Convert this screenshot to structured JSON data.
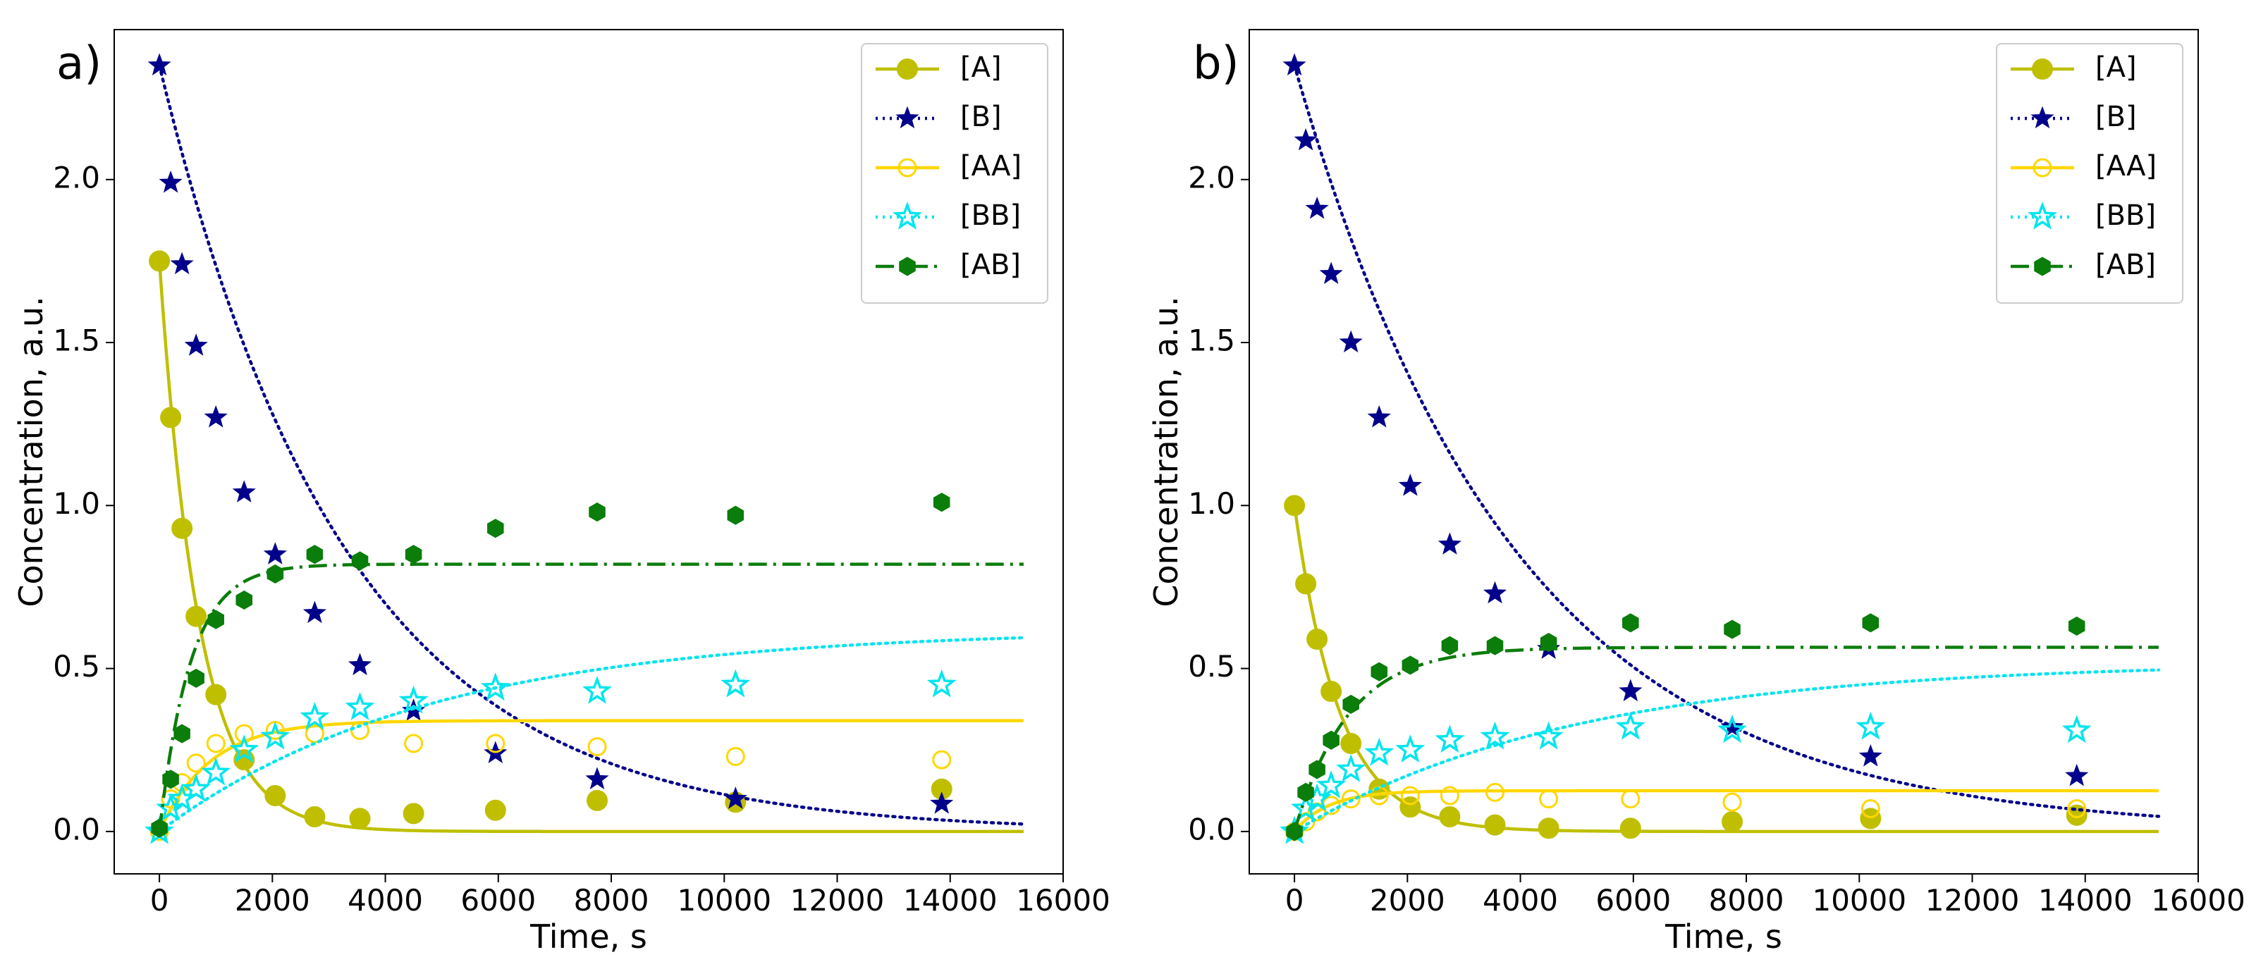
{
  "chart_data": [
    {
      "type": "scatter",
      "panel_label": "a)",
      "xlabel": "Time, s",
      "ylabel": "Concentration, a.u.",
      "xlim": [
        -800,
        16000
      ],
      "ylim": [
        -0.13,
        2.46
      ],
      "xticks": [
        0,
        2000,
        4000,
        6000,
        8000,
        10000,
        12000,
        14000,
        16000
      ],
      "xtick_labels": [
        "0",
        "2000",
        "4000",
        "6000",
        "8000",
        "10000",
        "12000",
        "14000",
        "16000"
      ],
      "yticks": [
        0.0,
        0.5,
        1.0,
        1.5,
        2.0
      ],
      "ytick_labels": [
        "0.0",
        "0.5",
        "1.0",
        "1.5",
        "2.0"
      ],
      "legend": "top-right",
      "grid": false,
      "series": [
        {
          "name": "[A]",
          "color": "#bfbf00",
          "line": "solid",
          "marker": "filled-circle",
          "x": [
            0,
            200,
            400,
            650,
            1000,
            1500,
            2050,
            2750,
            3550,
            4500,
            5950,
            7750,
            10200,
            13850
          ],
          "y": [
            1.75,
            1.27,
            0.93,
            0.66,
            0.42,
            0.22,
            0.11,
            0.045,
            0.04,
            0.055,
            0.065,
            0.095,
            0.09,
            0.13
          ],
          "fit": {
            "model": "exp_decay",
            "c0": 1.75,
            "c_inf": 0.0,
            "tau": 700
          }
        },
        {
          "name": "[B]",
          "color": "#00008b",
          "line": "dotted",
          "marker": "filled-star",
          "x": [
            0,
            200,
            400,
            650,
            1000,
            1500,
            2050,
            2750,
            3550,
            4500,
            5950,
            7750,
            10200,
            13850
          ],
          "y": [
            2.35,
            1.99,
            1.74,
            1.49,
            1.27,
            1.04,
            0.85,
            0.67,
            0.51,
            0.37,
            0.24,
            0.16,
            0.1,
            0.085
          ],
          "fit": {
            "model": "exp_decay",
            "c0": 2.35,
            "c_inf": 0.0,
            "tau": 3300
          }
        },
        {
          "name": "[AA]",
          "color": "#ffd700",
          "line": "solid",
          "marker": "open-circle",
          "x": [
            0,
            200,
            400,
            650,
            1000,
            1500,
            2050,
            2750,
            3550,
            4500,
            5950,
            7750,
            10200,
            13850
          ],
          "y": [
            0.0,
            0.1,
            0.15,
            0.21,
            0.27,
            0.3,
            0.31,
            0.3,
            0.31,
            0.27,
            0.27,
            0.26,
            0.23,
            0.22
          ],
          "fit": {
            "model": "exp_rise",
            "c0": 0.0,
            "c_inf": 0.34,
            "tau": 900
          }
        },
        {
          "name": "[BB]",
          "color": "#00e5ee",
          "line": "dotted",
          "marker": "open-star",
          "x": [
            0,
            200,
            400,
            650,
            1000,
            1500,
            2050,
            2750,
            3550,
            4500,
            5950,
            7750,
            10200,
            13850
          ],
          "y": [
            0.0,
            0.07,
            0.1,
            0.13,
            0.18,
            0.25,
            0.29,
            0.35,
            0.38,
            0.4,
            0.44,
            0.43,
            0.45,
            0.45
          ],
          "fit": {
            "model": "exp_rise",
            "c0": 0.0,
            "c_inf": 0.62,
            "tau": 4800
          }
        },
        {
          "name": "[AB]",
          "color": "#0a7d0a",
          "line": "dashdot",
          "marker": "filled-hexagon",
          "x": [
            0,
            200,
            400,
            650,
            1000,
            1500,
            2050,
            2750,
            3550,
            4500,
            5950,
            7750,
            10200,
            13850
          ],
          "y": [
            0.01,
            0.16,
            0.3,
            0.47,
            0.65,
            0.71,
            0.79,
            0.85,
            0.83,
            0.85,
            0.93,
            0.98,
            0.97,
            1.01
          ],
          "fit": {
            "model": "exp_rise",
            "c0": 0.0,
            "c_inf": 0.82,
            "tau": 550
          }
        }
      ]
    },
    {
      "type": "scatter",
      "panel_label": "b)",
      "xlabel": "Time, s",
      "ylabel": "Concentration, a.u.",
      "xlim": [
        -800,
        16000
      ],
      "ylim": [
        -0.13,
        2.46
      ],
      "xticks": [
        0,
        2000,
        4000,
        6000,
        8000,
        10000,
        12000,
        14000,
        16000
      ],
      "xtick_labels": [
        "0",
        "2000",
        "4000",
        "6000",
        "8000",
        "10000",
        "12000",
        "14000",
        "16000"
      ],
      "yticks": [
        0.0,
        0.5,
        1.0,
        1.5,
        2.0
      ],
      "ytick_labels": [
        "0.0",
        "0.5",
        "1.0",
        "1.5",
        "2.0"
      ],
      "legend": "top-right",
      "grid": false,
      "series": [
        {
          "name": "[A]",
          "color": "#bfbf00",
          "line": "solid",
          "marker": "filled-circle",
          "x": [
            0,
            200,
            400,
            650,
            1000,
            1500,
            2050,
            2750,
            3550,
            4500,
            5950,
            7750,
            10200,
            13850
          ],
          "y": [
            1.0,
            0.76,
            0.59,
            0.43,
            0.27,
            0.13,
            0.075,
            0.045,
            0.02,
            0.01,
            0.01,
            0.03,
            0.04,
            0.05
          ],
          "fit": {
            "model": "exp_decay",
            "c0": 1.0,
            "c_inf": 0.0,
            "tau": 800
          }
        },
        {
          "name": "[B]",
          "color": "#00008b",
          "line": "dotted",
          "marker": "filled-star",
          "x": [
            0,
            200,
            400,
            650,
            1000,
            1500,
            2050,
            2750,
            3550,
            4500,
            5950,
            7750,
            10200,
            13850
          ],
          "y": [
            2.35,
            2.12,
            1.91,
            1.71,
            1.5,
            1.27,
            1.06,
            0.88,
            0.73,
            0.56,
            0.43,
            0.32,
            0.23,
            0.17
          ],
          "fit": {
            "model": "exp_decay",
            "c0": 2.35,
            "c_inf": 0.0,
            "tau": 3900
          }
        },
        {
          "name": "[AA]",
          "color": "#ffd700",
          "line": "solid",
          "marker": "open-circle",
          "x": [
            0,
            200,
            400,
            650,
            1000,
            1500,
            2050,
            2750,
            3550,
            4500,
            5950,
            7750,
            10200,
            13850
          ],
          "y": [
            0.0,
            0.03,
            0.06,
            0.08,
            0.1,
            0.11,
            0.11,
            0.11,
            0.12,
            0.1,
            0.1,
            0.09,
            0.07,
            0.07
          ],
          "fit": {
            "model": "exp_rise",
            "c0": 0.0,
            "c_inf": 0.125,
            "tau": 600
          }
        },
        {
          "name": "[BB]",
          "color": "#00e5ee",
          "line": "dotted",
          "marker": "open-star",
          "x": [
            0,
            200,
            400,
            650,
            1000,
            1500,
            2050,
            2750,
            3550,
            4500,
            5950,
            7750,
            10200,
            13850
          ],
          "y": [
            0.0,
            0.07,
            0.1,
            0.14,
            0.19,
            0.24,
            0.25,
            0.28,
            0.29,
            0.29,
            0.32,
            0.31,
            0.32,
            0.31
          ],
          "fit": {
            "model": "exp_rise",
            "c0": 0.0,
            "c_inf": 0.52,
            "tau": 5000
          }
        },
        {
          "name": "[AB]",
          "color": "#0a7d0a",
          "line": "dashdot",
          "marker": "filled-hexagon",
          "x": [
            0,
            200,
            400,
            650,
            1000,
            1500,
            2050,
            2750,
            3550,
            4500,
            5950,
            7750,
            10200,
            13850
          ],
          "y": [
            0.0,
            0.12,
            0.19,
            0.28,
            0.39,
            0.49,
            0.51,
            0.57,
            0.57,
            0.58,
            0.64,
            0.62,
            0.64,
            0.63
          ],
          "fit": {
            "model": "exp_rise",
            "c0": 0.0,
            "c_inf": 0.565,
            "tau": 950
          }
        }
      ]
    }
  ]
}
